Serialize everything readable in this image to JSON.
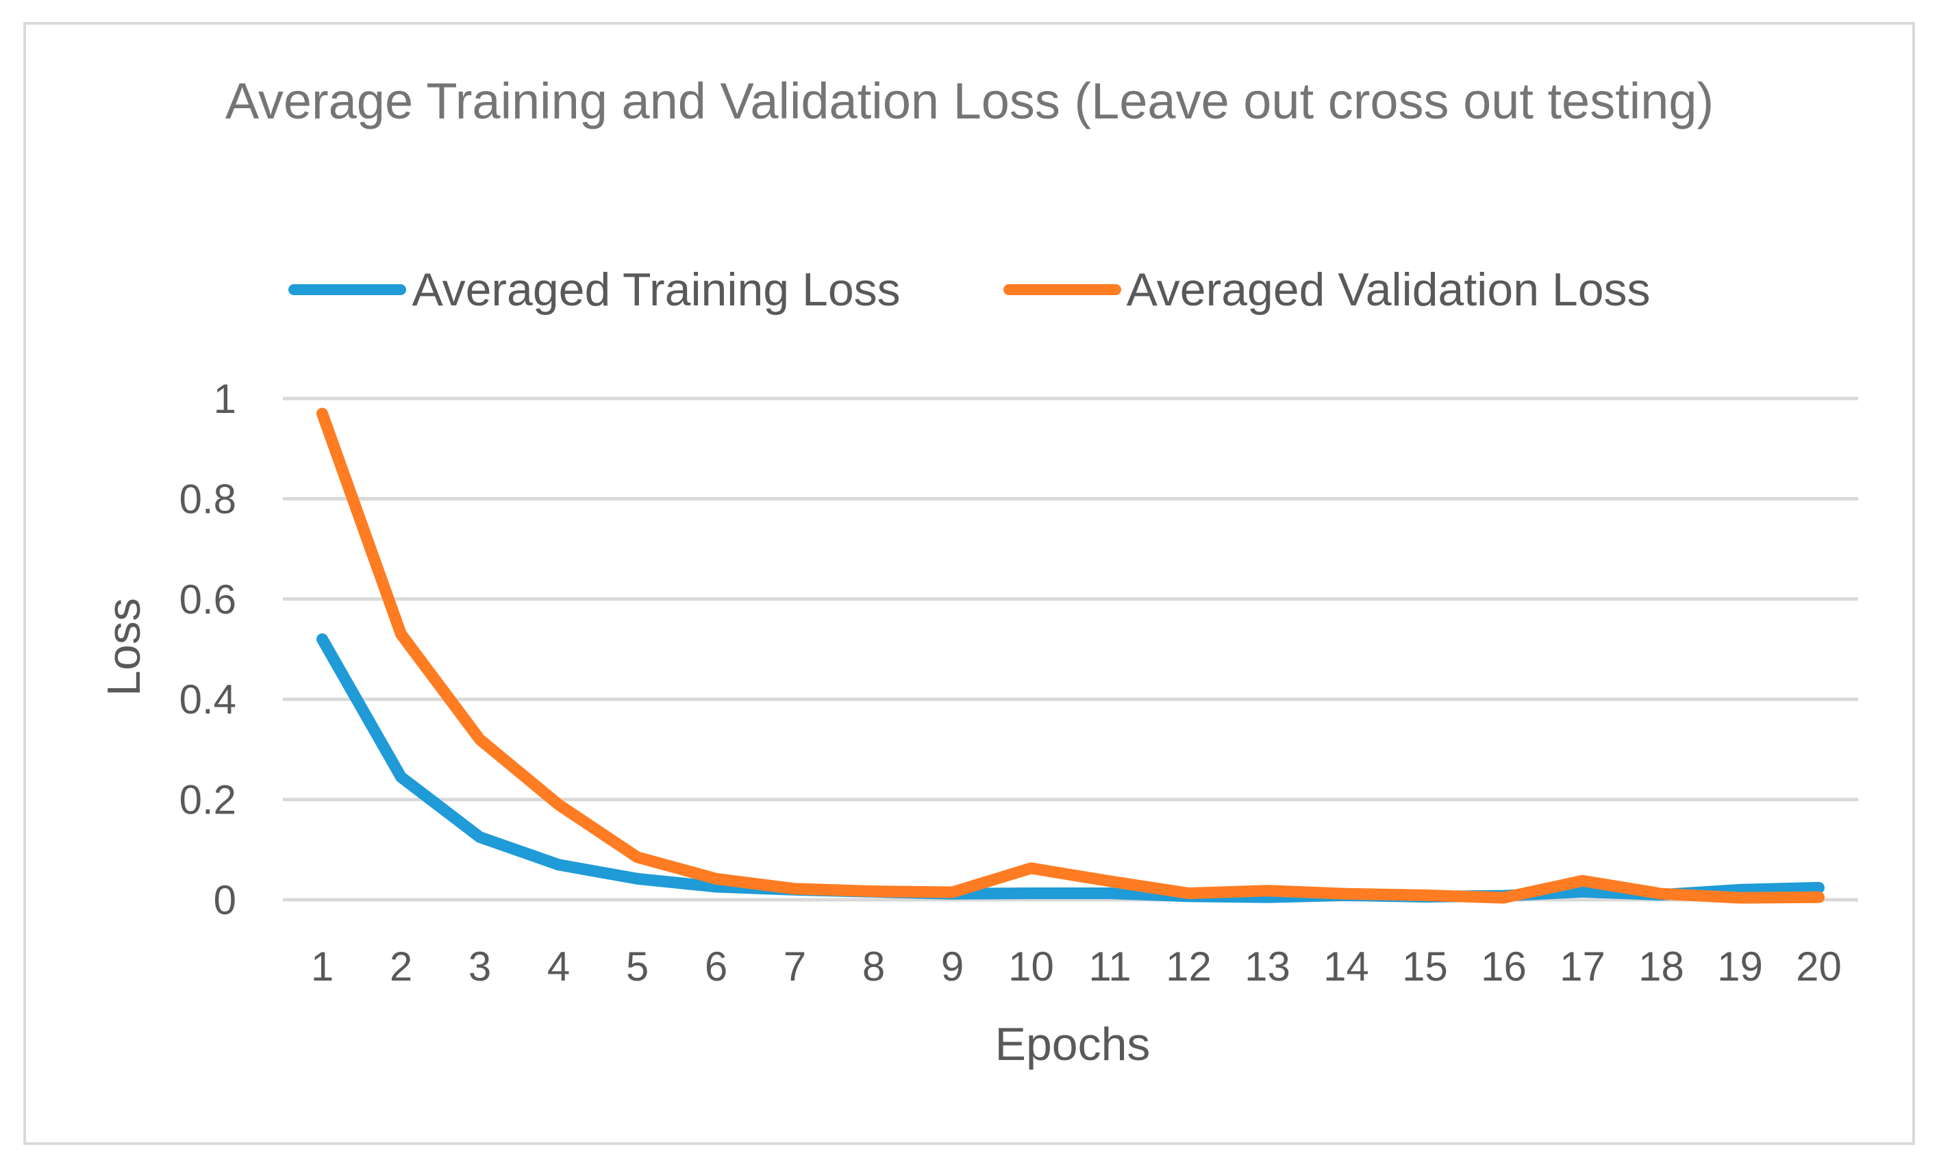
{
  "chart_data": {
    "type": "line",
    "title": "Average Training and Validation Loss (Leave out cross out testing)",
    "xlabel": "Epochs",
    "ylabel": "Loss",
    "ylim": [
      0,
      1
    ],
    "yticks": [
      "0",
      "0.2",
      "0.4",
      "0.6",
      "0.8",
      "1"
    ],
    "grid": true,
    "legend_position": "top",
    "categories": [
      "1",
      "2",
      "3",
      "4",
      "5",
      "6",
      "7",
      "8",
      "9",
      "10",
      "11",
      "12",
      "13",
      "14",
      "15",
      "16",
      "17",
      "18",
      "19",
      "20"
    ],
    "series": [
      {
        "name": "Averaged Training Loss",
        "color": "#1f9bd7",
        "values": [
          0.52,
          0.245,
          0.125,
          0.07,
          0.042,
          0.026,
          0.02,
          0.016,
          0.012,
          0.013,
          0.013,
          0.007,
          0.005,
          0.009,
          0.006,
          0.008,
          0.016,
          0.01,
          0.02,
          0.024
        ]
      },
      {
        "name": "Averaged Validation Loss",
        "color": "#ff7c22",
        "values": [
          0.97,
          0.53,
          0.32,
          0.19,
          0.085,
          0.042,
          0.022,
          0.017,
          0.015,
          0.063,
          0.037,
          0.013,
          0.018,
          0.012,
          0.009,
          0.004,
          0.038,
          0.012,
          0.004,
          0.005
        ]
      }
    ]
  }
}
